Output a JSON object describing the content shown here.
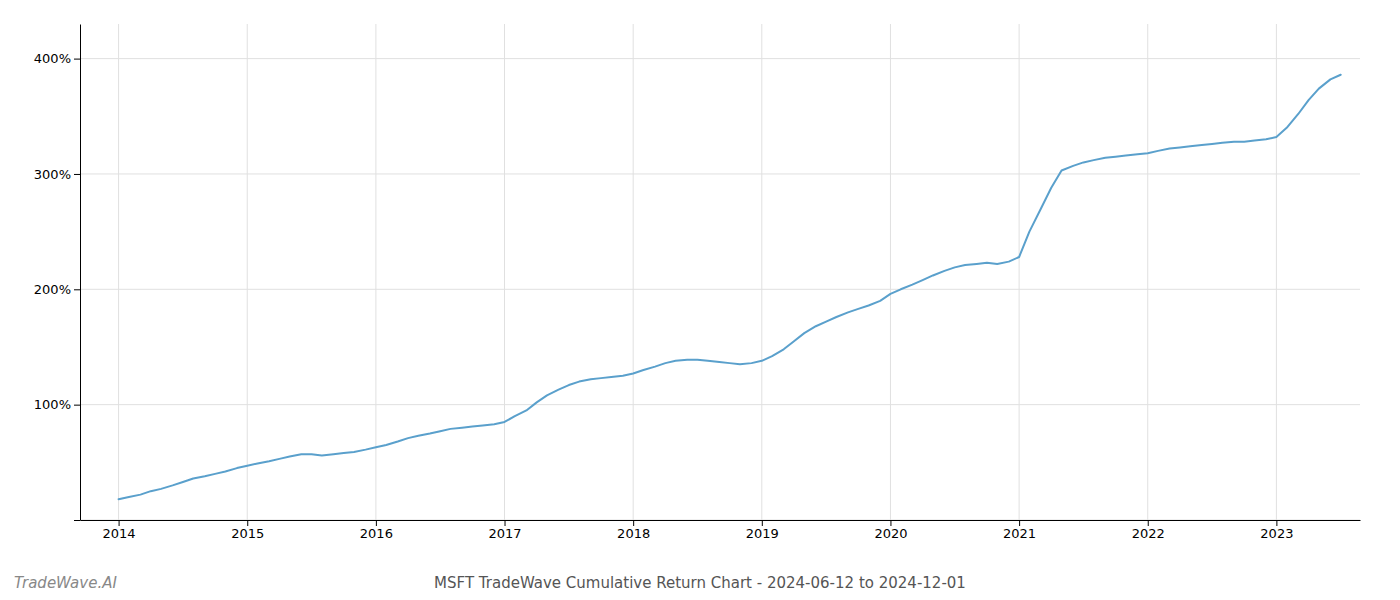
{
  "chart_data": {
    "type": "line",
    "title": "MSFT TradeWave Cumulative Return Chart - 2024-06-12 to 2024-12-01",
    "annotations": [
      "TradeWave.AI"
    ],
    "color": "#5aa0cc",
    "x": [
      2014.0,
      2014.08,
      2014.17,
      2014.25,
      2014.33,
      2014.42,
      2014.5,
      2014.58,
      2014.67,
      2014.75,
      2014.83,
      2014.92,
      2015.0,
      2015.08,
      2015.17,
      2015.25,
      2015.33,
      2015.42,
      2015.5,
      2015.58,
      2015.67,
      2015.75,
      2015.83,
      2015.92,
      2016.0,
      2016.08,
      2016.17,
      2016.25,
      2016.33,
      2016.42,
      2016.5,
      2016.58,
      2016.67,
      2016.75,
      2016.83,
      2016.92,
      2017.0,
      2017.08,
      2017.17,
      2017.25,
      2017.33,
      2017.42,
      2017.5,
      2017.58,
      2017.67,
      2017.75,
      2017.83,
      2017.92,
      2018.0,
      2018.08,
      2018.17,
      2018.25,
      2018.33,
      2018.42,
      2018.5,
      2018.58,
      2018.67,
      2018.75,
      2018.83,
      2018.92,
      2019.0,
      2019.08,
      2019.17,
      2019.25,
      2019.33,
      2019.42,
      2019.5,
      2019.58,
      2019.67,
      2019.75,
      2019.83,
      2019.92,
      2020.0,
      2020.08,
      2020.17,
      2020.25,
      2020.33,
      2020.42,
      2020.5,
      2020.58,
      2020.67,
      2020.75,
      2020.83,
      2020.92,
      2021.0,
      2021.08,
      2021.17,
      2021.25,
      2021.33,
      2021.42,
      2021.5,
      2021.58,
      2021.67,
      2021.75,
      2021.83,
      2021.92,
      2022.0,
      2022.08,
      2022.17,
      2022.25,
      2022.33,
      2022.42,
      2022.5,
      2022.58,
      2022.67,
      2022.75,
      2022.83,
      2022.92,
      2023.0,
      2023.08,
      2023.17,
      2023.25,
      2023.33,
      2023.42,
      2023.5
    ],
    "values": [
      18,
      20,
      22,
      25,
      27,
      30,
      33,
      36,
      38,
      40,
      42,
      45,
      47,
      49,
      51,
      53,
      55,
      57,
      57,
      56,
      57,
      58,
      59,
      61,
      63,
      65,
      68,
      71,
      73,
      75,
      77,
      79,
      80,
      81,
      82,
      83,
      85,
      90,
      95,
      102,
      108,
      113,
      117,
      120,
      122,
      123,
      124,
      125,
      127,
      130,
      133,
      136,
      138,
      139,
      139,
      138,
      137,
      136,
      135,
      136,
      138,
      142,
      148,
      155,
      162,
      168,
      172,
      176,
      180,
      183,
      186,
      190,
      196,
      200,
      204,
      208,
      212,
      216,
      219,
      221,
      222,
      223,
      222,
      224,
      228,
      250,
      270,
      288,
      303,
      307,
      310,
      312,
      314,
      315,
      316,
      317,
      318,
      320,
      322,
      323,
      324,
      325,
      326,
      327,
      328,
      328,
      329,
      330,
      332,
      340,
      352,
      364,
      374,
      382,
      386
    ],
    "xlim": [
      2013.7,
      2023.65
    ],
    "ylim": [
      0,
      430
    ],
    "xticks": [
      2014,
      2015,
      2016,
      2017,
      2018,
      2019,
      2020,
      2021,
      2022,
      2023
    ],
    "yticks": [
      {
        "value": 0,
        "label": null
      },
      {
        "value": 100,
        "label": "100%"
      },
      {
        "value": 200,
        "label": "200%"
      },
      {
        "value": 300,
        "label": "300%"
      },
      {
        "value": 400,
        "label": "400%"
      }
    ],
    "grid": true
  }
}
